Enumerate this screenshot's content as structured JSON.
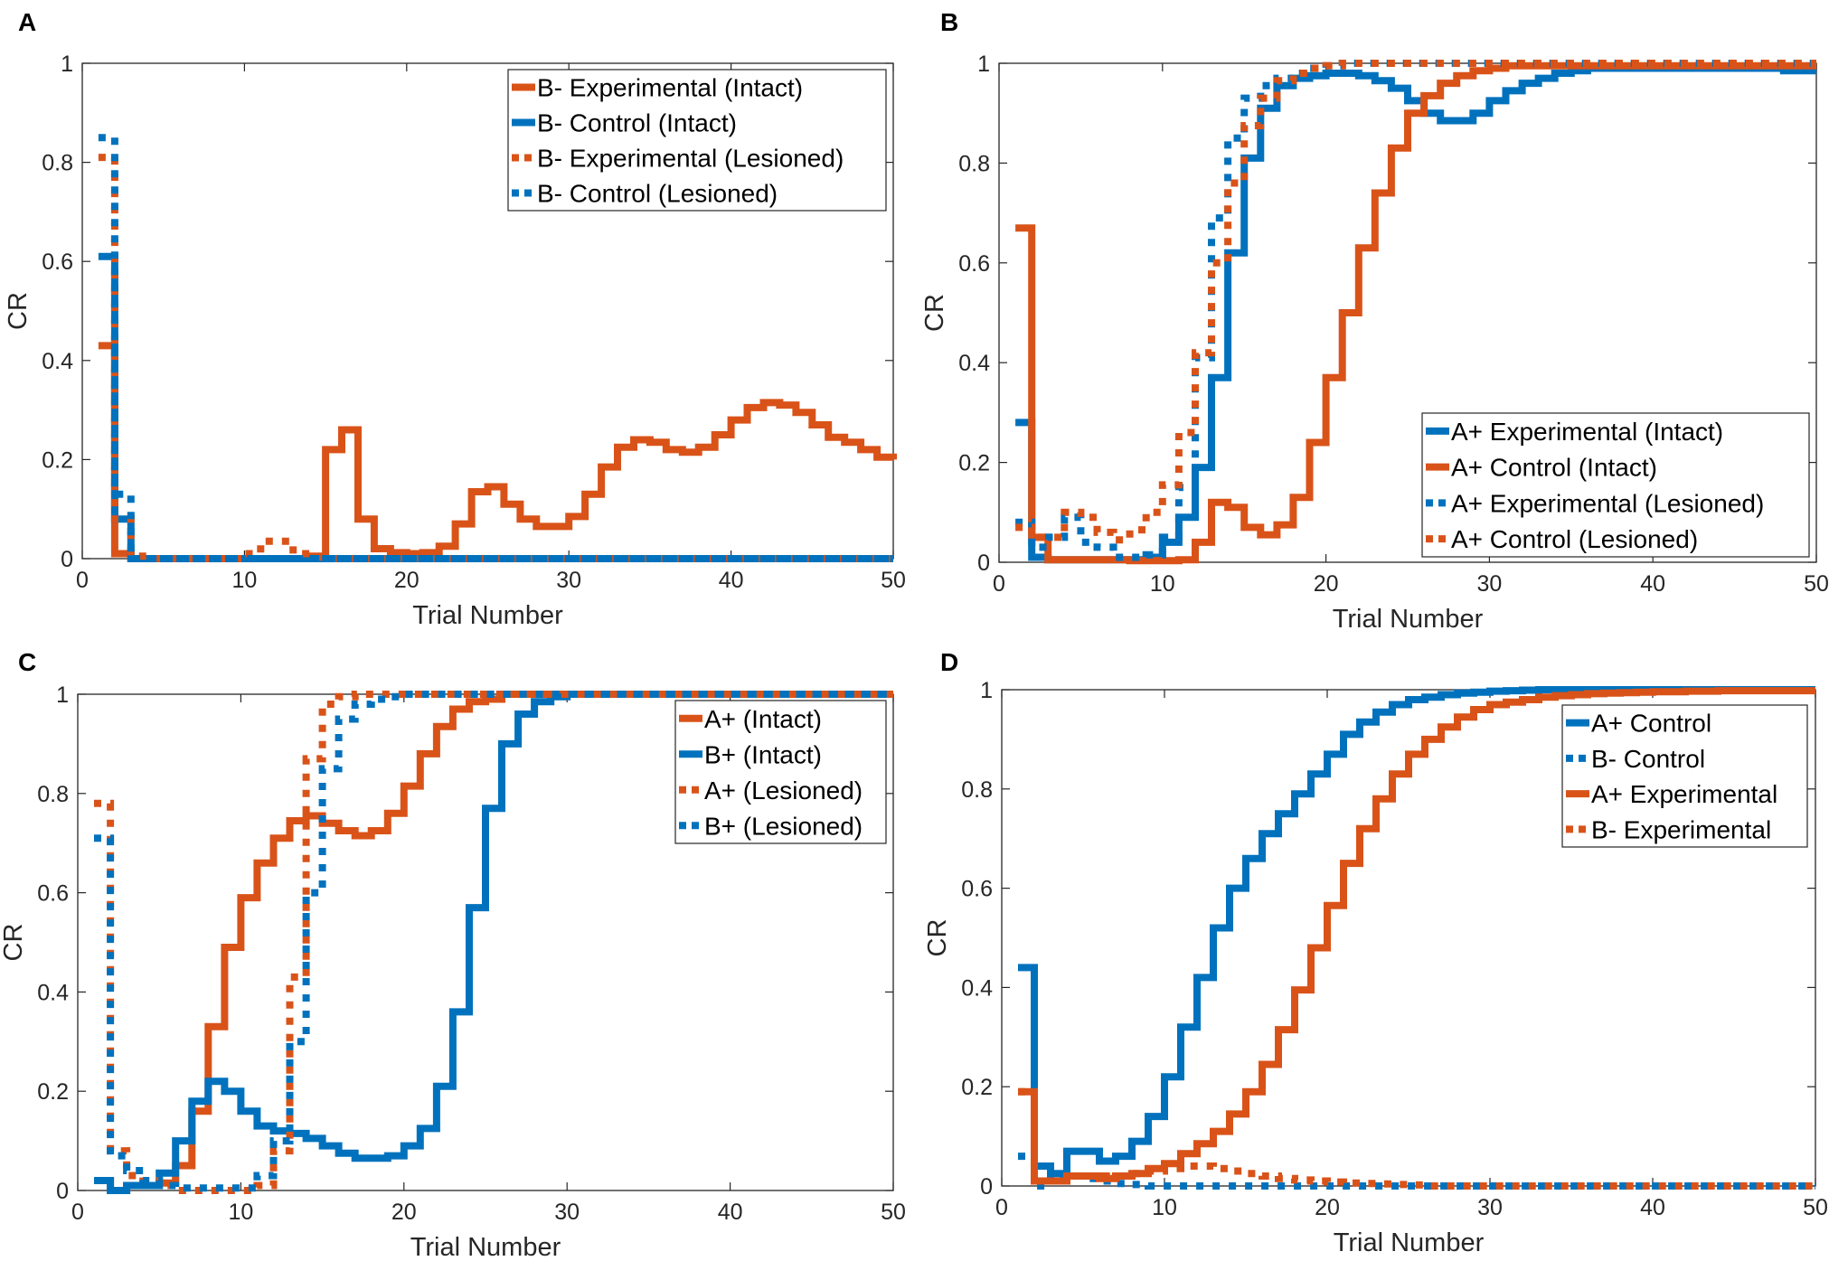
{
  "colors": {
    "orange": "#D95319",
    "blue": "#0072BD"
  },
  "chart_data": [
    {
      "type": "line",
      "panel": "A",
      "xlabel": "Trial Number",
      "ylabel": "CR",
      "xlim": [
        0,
        50
      ],
      "ylim": [
        0,
        1
      ],
      "xticks": [
        "0",
        "10",
        "20",
        "30",
        "40",
        "50"
      ],
      "yticks": [
        "0",
        "0.2",
        "0.4",
        "0.6",
        "0.8",
        "1"
      ],
      "legend_position": "top-right",
      "series": [
        {
          "name": "B- Experimental (Intact)",
          "color": "orange",
          "style": "solid",
          "values": [
            0.43,
            0.01,
            0,
            0,
            0,
            0,
            0,
            0,
            0,
            0,
            0,
            0,
            0,
            0.005,
            0.22,
            0.26,
            0.08,
            0.02,
            0.012,
            0.01,
            0.012,
            0.025,
            0.07,
            0.135,
            0.145,
            0.11,
            0.08,
            0.065,
            0.065,
            0.085,
            0.13,
            0.185,
            0.225,
            0.24,
            0.235,
            0.22,
            0.215,
            0.225,
            0.25,
            0.28,
            0.305,
            0.315,
            0.31,
            0.295,
            0.27,
            0.245,
            0.235,
            0.22,
            0.205,
            0.2
          ]
        },
        {
          "name": "B- Control (Intact)",
          "color": "blue",
          "style": "solid",
          "values": [
            0.61,
            0.08,
            0,
            0,
            0,
            0,
            0,
            0,
            0,
            0,
            0,
            0,
            0,
            0,
            0,
            0,
            0,
            0,
            0,
            0,
            0,
            0,
            0,
            0,
            0,
            0,
            0,
            0,
            0,
            0,
            0,
            0,
            0,
            0,
            0,
            0,
            0,
            0,
            0,
            0,
            0,
            0,
            0,
            0,
            0,
            0,
            0,
            0,
            0,
            0
          ]
        },
        {
          "name": "B- Experimental (Lesioned)",
          "color": "orange",
          "style": "dotted",
          "values": [
            0.81,
            0.08,
            0.005,
            0,
            0,
            0,
            0,
            0,
            0,
            0.01,
            0.035,
            0.035,
            0.01,
            0.003,
            0,
            0,
            0,
            0,
            0,
            0,
            0,
            0,
            0,
            0,
            0,
            0,
            0,
            0,
            0,
            0,
            0,
            0,
            0,
            0,
            0,
            0,
            0,
            0,
            0,
            0,
            0,
            0,
            0,
            0,
            0,
            0,
            0,
            0,
            0,
            0
          ]
        },
        {
          "name": "B- Control (Lesioned)",
          "color": "blue",
          "style": "dotted",
          "values": [
            0.85,
            0.13,
            0,
            0,
            0,
            0,
            0,
            0,
            0,
            0,
            0,
            0,
            0,
            0,
            0,
            0,
            0,
            0,
            0,
            0,
            0,
            0,
            0,
            0,
            0,
            0,
            0,
            0,
            0,
            0,
            0,
            0,
            0,
            0,
            0,
            0,
            0,
            0,
            0,
            0,
            0,
            0,
            0,
            0,
            0,
            0,
            0,
            0,
            0,
            0
          ]
        }
      ]
    },
    {
      "type": "line",
      "panel": "B",
      "xlabel": "Trial Number",
      "ylabel": "CR",
      "xlim": [
        0,
        50
      ],
      "ylim": [
        0,
        1
      ],
      "xticks": [
        "0",
        "10",
        "20",
        "30",
        "40",
        "50"
      ],
      "yticks": [
        "0",
        "0.2",
        "0.4",
        "0.6",
        "0.8",
        "1"
      ],
      "legend_position": "bottom-right",
      "series": [
        {
          "name": "A+ Experimental (Intact)",
          "color": "blue",
          "style": "solid",
          "values": [
            0.28,
            0.01,
            0.005,
            0.005,
            0.005,
            0.005,
            0.005,
            0.005,
            0.01,
            0.04,
            0.09,
            0.19,
            0.37,
            0.62,
            0.81,
            0.91,
            0.955,
            0.97,
            0.975,
            0.98,
            0.98,
            0.975,
            0.965,
            0.95,
            0.925,
            0.9,
            0.885,
            0.885,
            0.9,
            0.925,
            0.945,
            0.96,
            0.97,
            0.98,
            0.985,
            0.99,
            0.99,
            0.99,
            0.99,
            0.99,
            0.99,
            0.99,
            0.99,
            0.99,
            0.99,
            0.99,
            0.99,
            0.985,
            0.985,
            0.985
          ]
        },
        {
          "name": "A+ Control (Intact)",
          "color": "orange",
          "style": "solid",
          "values": [
            0.67,
            0.05,
            0.005,
            0.005,
            0.005,
            0.005,
            0.005,
            0.003,
            0.003,
            0.003,
            0.005,
            0.04,
            0.12,
            0.11,
            0.07,
            0.055,
            0.075,
            0.13,
            0.24,
            0.37,
            0.5,
            0.63,
            0.74,
            0.83,
            0.9,
            0.935,
            0.96,
            0.975,
            0.985,
            0.99,
            0.995,
            0.995,
            0.995,
            0.995,
            0.995,
            0.995,
            0.995,
            0.995,
            0.995,
            0.995,
            0.995,
            0.995,
            0.995,
            0.995,
            0.995,
            0.995,
            0.995,
            0.995,
            0.995,
            0.995
          ]
        },
        {
          "name": "A+ Experimental (Lesioned)",
          "color": "blue",
          "style": "dotted",
          "values": [
            0.08,
            0.03,
            0.05,
            0.09,
            0.04,
            0.03,
            0.01,
            0.01,
            0.015,
            0.05,
            0.15,
            0.41,
            0.69,
            0.85,
            0.93,
            0.955,
            0.97,
            0.98,
            0.99,
            0.995,
            1,
            1,
            1,
            1,
            1,
            1,
            1,
            1,
            1,
            1,
            1,
            1,
            1,
            1,
            1,
            1,
            1,
            1,
            1,
            1,
            1,
            1,
            1,
            1,
            1,
            1,
            1,
            1,
            1,
            1
          ]
        },
        {
          "name": "A+ Control (Lesioned)",
          "color": "orange",
          "style": "dotted",
          "values": [
            0.07,
            0.05,
            0.05,
            0.1,
            0.09,
            0.06,
            0.045,
            0.065,
            0.1,
            0.155,
            0.26,
            0.42,
            0.6,
            0.76,
            0.875,
            0.93,
            0.965,
            0.98,
            0.99,
            0.995,
            1,
            1,
            1,
            1,
            1,
            1,
            1,
            1,
            1,
            1,
            1,
            1,
            1,
            1,
            1,
            1,
            1,
            1,
            1,
            1,
            1,
            1,
            1,
            1,
            1,
            1,
            1,
            1,
            1,
            1
          ]
        }
      ]
    },
    {
      "type": "line",
      "panel": "C",
      "xlabel": "Trial Number",
      "ylabel": "CR",
      "xlim": [
        0,
        50
      ],
      "ylim": [
        0,
        1
      ],
      "xticks": [
        "0",
        "10",
        "20",
        "30",
        "40",
        "50"
      ],
      "yticks": [
        "0",
        "0.2",
        "0.4",
        "0.6",
        "0.8",
        "1"
      ],
      "legend_position": "top-right",
      "series": [
        {
          "name": "A+ (Intact)",
          "color": "orange",
          "style": "solid",
          "values": [
            0.02,
            0,
            0.01,
            0.01,
            0.015,
            0.05,
            0.16,
            0.33,
            0.49,
            0.59,
            0.66,
            0.71,
            0.745,
            0.755,
            0.74,
            0.725,
            0.715,
            0.725,
            0.76,
            0.815,
            0.88,
            0.935,
            0.97,
            0.985,
            0.99,
            1,
            1,
            1,
            1,
            1,
            1,
            1,
            1,
            1,
            1,
            1,
            1,
            1,
            1,
            1,
            1,
            1,
            1,
            1,
            1,
            1,
            1,
            1,
            1,
            1
          ]
        },
        {
          "name": "B+ (Intact)",
          "color": "blue",
          "style": "solid",
          "values": [
            0.02,
            0,
            0.01,
            0.01,
            0.035,
            0.1,
            0.18,
            0.22,
            0.2,
            0.16,
            0.13,
            0.12,
            0.115,
            0.105,
            0.09,
            0.075,
            0.065,
            0.065,
            0.07,
            0.09,
            0.125,
            0.21,
            0.36,
            0.57,
            0.77,
            0.9,
            0.96,
            0.985,
            0.995,
            1,
            1,
            1,
            1,
            1,
            1,
            1,
            1,
            1,
            1,
            1,
            1,
            1,
            1,
            1,
            1,
            1,
            1,
            1,
            1,
            1
          ]
        },
        {
          "name": "A+ (Lesioned)",
          "color": "orange",
          "style": "dotted",
          "values": [
            0.78,
            0.08,
            0.03,
            0.02,
            0.01,
            0,
            0,
            0,
            0,
            0,
            0.01,
            0.08,
            0.43,
            0.87,
            0.98,
            0.995,
            1,
            1,
            1,
            1,
            1,
            1,
            1,
            1,
            1,
            1,
            1,
            1,
            1,
            1,
            1,
            1,
            1,
            1,
            1,
            1,
            1,
            1,
            1,
            1,
            1,
            1,
            1,
            1,
            1,
            1,
            1,
            1,
            1,
            1
          ]
        },
        {
          "name": "B+ (Lesioned)",
          "color": "blue",
          "style": "dotted",
          "values": [
            0.71,
            0.07,
            0.04,
            0.02,
            0.01,
            0.005,
            0.005,
            0.005,
            0.005,
            0.005,
            0.03,
            0.1,
            0.3,
            0.6,
            0.85,
            0.95,
            0.98,
            0.99,
            0.995,
            1,
            1,
            1,
            1,
            1,
            1,
            1,
            1,
            1,
            1,
            1,
            1,
            1,
            1,
            1,
            1,
            1,
            1,
            1,
            1,
            1,
            1,
            1,
            1,
            1,
            1,
            1,
            1,
            1,
            1,
            1
          ]
        }
      ]
    },
    {
      "type": "line",
      "panel": "D",
      "xlabel": "Trial Number",
      "ylabel": "CR",
      "xlim": [
        0,
        50
      ],
      "ylim": [
        0,
        1
      ],
      "xticks": [
        "0",
        "10",
        "20",
        "30",
        "40",
        "50"
      ],
      "yticks": [
        "0",
        "0.2",
        "0.4",
        "0.6",
        "0.8",
        "1"
      ],
      "legend_position": "top-right",
      "series": [
        {
          "name": "A+ Control",
          "color": "blue",
          "style": "solid",
          "values": [
            0.44,
            0.04,
            0.025,
            0.07,
            0.07,
            0.05,
            0.06,
            0.09,
            0.14,
            0.22,
            0.32,
            0.42,
            0.52,
            0.6,
            0.66,
            0.71,
            0.75,
            0.79,
            0.83,
            0.87,
            0.91,
            0.935,
            0.955,
            0.97,
            0.98,
            0.985,
            0.99,
            0.993,
            0.995,
            0.997,
            0.998,
            0.999,
            1,
            1,
            1,
            1,
            1,
            1,
            1,
            1,
            1,
            1,
            1,
            1,
            1,
            1,
            1,
            1,
            1,
            1
          ]
        },
        {
          "name": "B-  Control",
          "color": "blue",
          "style": "dotted",
          "values": [
            0.06,
            0,
            0.02,
            0.02,
            0.015,
            0.01,
            0.005,
            0.003,
            0,
            0,
            0,
            0,
            0,
            0,
            0,
            0,
            0,
            0,
            0,
            0,
            0,
            0,
            0,
            0,
            0,
            0,
            0,
            0,
            0,
            0,
            0,
            0,
            0,
            0,
            0,
            0,
            0,
            0,
            0,
            0,
            0,
            0,
            0,
            0,
            0,
            0,
            0,
            0,
            0,
            0
          ]
        },
        {
          "name": "A+ Experimental",
          "color": "orange",
          "style": "solid",
          "values": [
            0.19,
            0.01,
            0.01,
            0.02,
            0.02,
            0.015,
            0.02,
            0.025,
            0.035,
            0.045,
            0.065,
            0.085,
            0.11,
            0.145,
            0.19,
            0.245,
            0.315,
            0.395,
            0.48,
            0.565,
            0.65,
            0.72,
            0.78,
            0.83,
            0.87,
            0.9,
            0.925,
            0.945,
            0.96,
            0.97,
            0.975,
            0.98,
            0.985,
            0.988,
            0.99,
            0.992,
            0.993,
            0.994,
            0.995,
            0.996,
            0.996,
            0.997,
            0.997,
            0.998,
            0.998,
            0.998,
            0.998,
            0.998,
            0.998,
            0.998
          ]
        },
        {
          "name": "B-  Experimental",
          "color": "orange",
          "style": "dotted",
          "values": [
            0.19,
            0.01,
            0.01,
            0.02,
            0.02,
            0.02,
            0.02,
            0.025,
            0.03,
            0.035,
            0.04,
            0.04,
            0.035,
            0.03,
            0.025,
            0.02,
            0.015,
            0.012,
            0.01,
            0.008,
            0.006,
            0.005,
            0.004,
            0.003,
            0.002,
            0,
            0,
            0,
            0,
            0,
            0,
            0,
            0,
            0,
            0,
            0,
            0,
            0,
            0,
            0,
            0,
            0,
            0,
            0,
            0,
            0,
            0,
            0,
            0,
            0
          ]
        }
      ]
    }
  ]
}
